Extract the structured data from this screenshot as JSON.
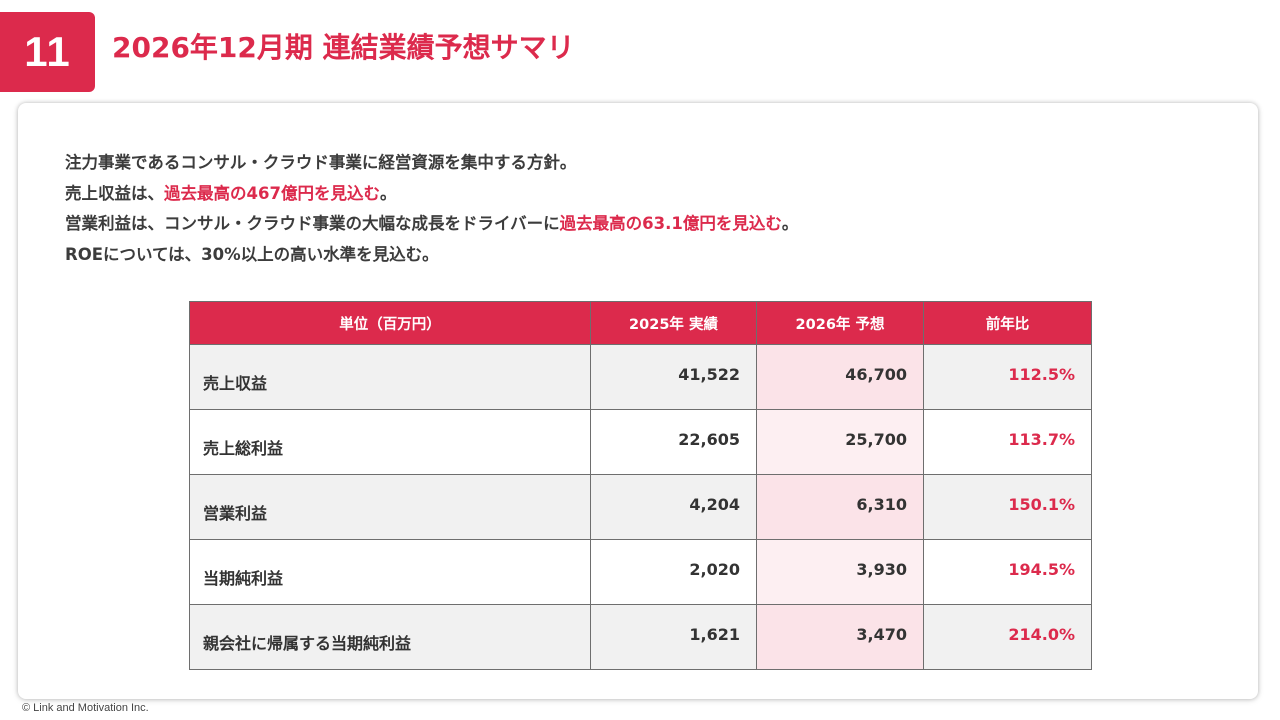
{
  "header": {
    "page_number": "11",
    "title": "2026年12月期 連結業績予想サマリ"
  },
  "summary": {
    "line1": "注力事業であるコンサル・クラウド事業に経営資源を集中する方針。",
    "line2_pre": "売上収益は、",
    "line2_hl": "過去最高の467億円を見込む",
    "line2_post": "。",
    "line3_pre": "営業利益は、コンサル・クラウド事業の大幅な成長をドライバーに",
    "line3_hl": "過去最高の63.1億円を見込む",
    "line3_post": "。",
    "line4": "ROEについては、30%以上の高い水準を見込む。"
  },
  "table": {
    "headers": [
      "単位（百万円）",
      "2025年 実績",
      "2026年 予想",
      "前年比"
    ],
    "rows": [
      {
        "label": "売上収益",
        "actual": "41,522",
        "forecast": "46,700",
        "yoy": "112.5%"
      },
      {
        "label": "売上総利益",
        "actual": "22,605",
        "forecast": "25,700",
        "yoy": "113.7%"
      },
      {
        "label": "営業利益",
        "actual": "4,204",
        "forecast": "6,310",
        "yoy": "150.1%"
      },
      {
        "label": "当期純利益",
        "actual": "2,020",
        "forecast": "3,930",
        "yoy": "194.5%"
      },
      {
        "label": "親会社に帰属する当期純利益",
        "actual": "1,621",
        "forecast": "3,470",
        "yoy": "214.0%"
      }
    ]
  },
  "footer": {
    "copyright": "© Link and Motivation Inc."
  },
  "colors": {
    "accent": "#dc2a4c",
    "forecast_tint": "#fbe3e8",
    "row_shade": "#f1f1f1"
  }
}
